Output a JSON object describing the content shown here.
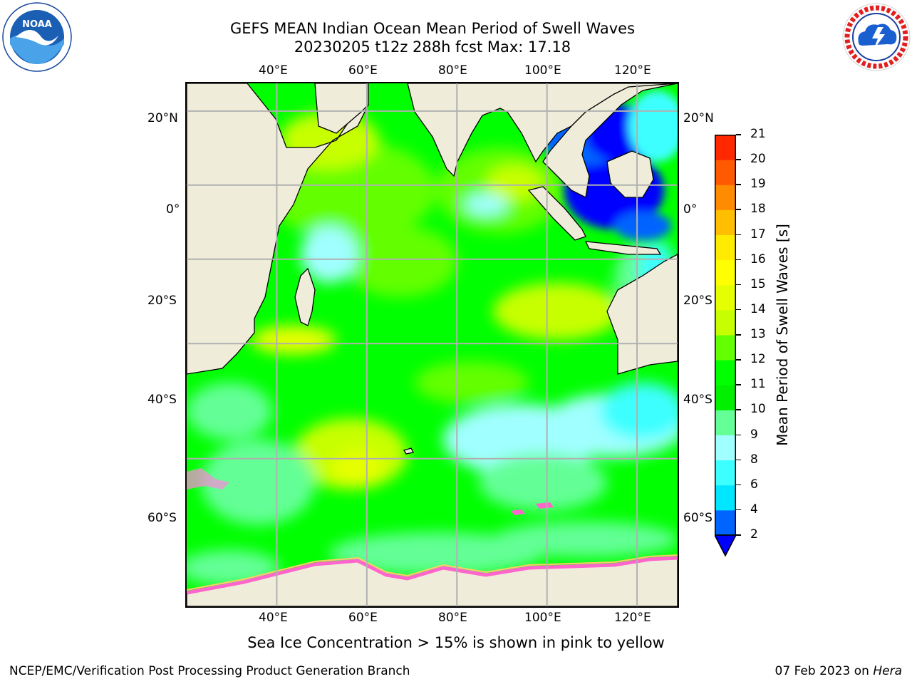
{
  "header": {
    "title_line1": "GEFS MEAN Indian Ocean Mean Period of Swell Waves",
    "title_line2": "20230205 t12z 288h fcst   Max: 17.18"
  },
  "map": {
    "lon_range": [
      20,
      129
    ],
    "lat_range": [
      -75,
      27
    ],
    "lon_ticks": [
      "40°E",
      "60°E",
      "80°E",
      "100°E",
      "120°E"
    ],
    "lat_ticks_left": [
      "20°N",
      "0°",
      "20°S",
      "40°S",
      "60°S"
    ],
    "lat_ticks_right": [
      "20°N",
      "0°",
      "20°S",
      "40°S",
      "60°S"
    ],
    "colors": {
      "land": "#efedda",
      "ocean_base": "#00ff00",
      "grid": "#b0b0b0"
    }
  },
  "colorbar": {
    "title": "Mean Period of Swell Waves [s]",
    "levels": [
      "2",
      "4",
      "6",
      "8",
      "9",
      "10",
      "11",
      "12",
      "13",
      "14",
      "15",
      "16",
      "17",
      "18",
      "19",
      "20",
      "21"
    ],
    "colors": [
      "#0064ff",
      "#00e6ff",
      "#3cffff",
      "#a0ffff",
      "#64ff96",
      "#00f000",
      "#00ff00",
      "#64ff00",
      "#c8ff00",
      "#e6ff00",
      "#ffff00",
      "#ffeb00",
      "#ffbe00",
      "#ff8c00",
      "#ff5a00",
      "#ff2800"
    ],
    "extend_color": "#0000ff"
  },
  "caption": "Sea Ice Concentration > 15% is shown in pink to yellow",
  "footer": {
    "left": "NCEP/EMC/Verification Post Processing Product Generation Branch",
    "right_date": "07 Feb 2023 on",
    "right_host": "Hera"
  },
  "logos": {
    "left": "NOAA",
    "right": "NATIONAL WEATHER SERVICE"
  }
}
